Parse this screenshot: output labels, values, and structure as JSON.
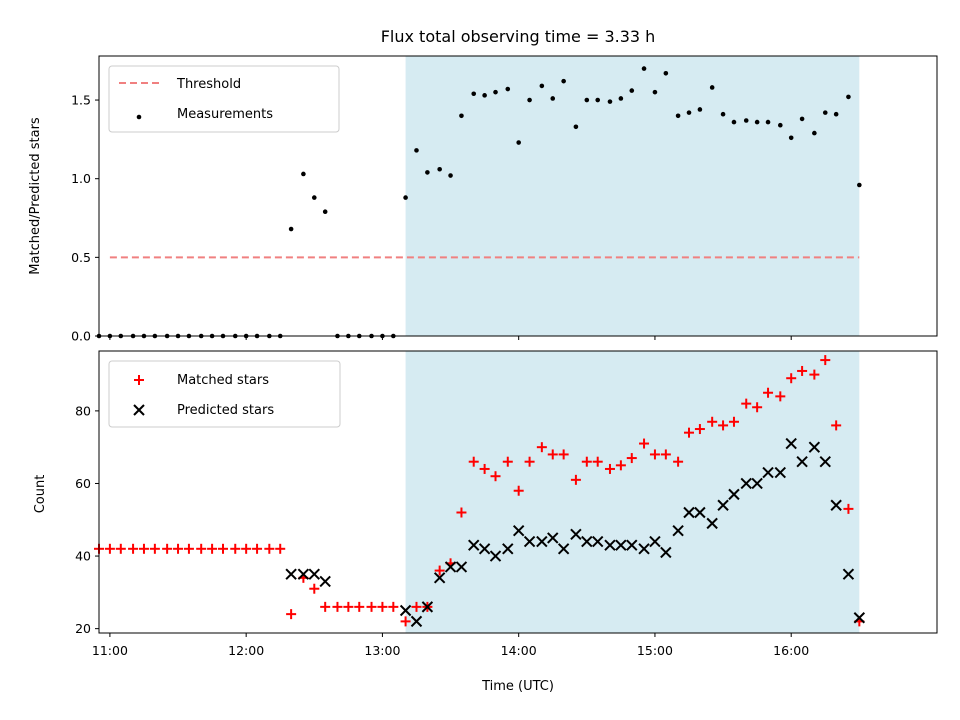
{
  "colors": {
    "background": "#ffffff",
    "span": "#add8e6",
    "threshold": "#f08080",
    "measurement": "#000000",
    "matched": "#ff0000",
    "predicted": "#000000"
  },
  "chart_data": [
    {
      "type": "scatter",
      "title": "Flux total observing time = 3.33 h",
      "xlabel": "",
      "ylabel": "Matched/Predicted stars",
      "xlim": [
        10.92,
        17.07
      ],
      "ylim": [
        0.0,
        1.78
      ],
      "yticks": [
        0.0,
        0.5,
        1.0,
        1.5
      ],
      "ytick_labels": [
        "0.0",
        "0.5",
        "1.0",
        "1.5"
      ],
      "xticks": [
        11,
        12,
        13,
        14,
        15,
        16
      ],
      "span": [
        13.17,
        16.5
      ],
      "threshold": {
        "label": "Threshold",
        "value": 0.5,
        "x_range": [
          11.0,
          16.5
        ]
      },
      "legend": [
        "Threshold",
        "Measurements"
      ],
      "legend_position": "top-left",
      "series": [
        {
          "name": "Measurements",
          "x": [
            10.92,
            11.0,
            11.08,
            11.17,
            11.25,
            11.33,
            11.42,
            11.5,
            11.58,
            11.67,
            11.75,
            11.83,
            11.92,
            12.0,
            12.08,
            12.17,
            12.25,
            12.33,
            12.42,
            12.5,
            12.58,
            12.67,
            12.75,
            12.83,
            12.92,
            13.0,
            13.08,
            13.17,
            13.25,
            13.33,
            13.42,
            13.5,
            13.58,
            13.67,
            13.75,
            13.83,
            13.92,
            14.0,
            14.08,
            14.17,
            14.25,
            14.33,
            14.42,
            14.5,
            14.58,
            14.67,
            14.75,
            14.83,
            14.92,
            15.0,
            15.08,
            15.17,
            15.25,
            15.33,
            15.42,
            15.5,
            15.58,
            15.67,
            15.75,
            15.83,
            15.92,
            16.0,
            16.08,
            16.17,
            16.25,
            16.33,
            16.42,
            16.5
          ],
          "y": [
            0.0,
            0.0,
            0.0,
            0.0,
            0.0,
            0.0,
            0.0,
            0.0,
            0.0,
            0.0,
            0.0,
            0.0,
            0.0,
            0.0,
            0.0,
            0.0,
            0.0,
            0.68,
            1.03,
            0.88,
            0.79,
            0.0,
            0.0,
            0.0,
            0.0,
            0.0,
            0.0,
            0.88,
            1.18,
            1.04,
            1.06,
            1.02,
            1.4,
            1.54,
            1.53,
            1.55,
            1.57,
            1.23,
            1.5,
            1.59,
            1.51,
            1.62,
            1.33,
            1.5,
            1.5,
            1.49,
            1.51,
            1.56,
            1.7,
            1.55,
            1.67,
            1.4,
            1.42,
            1.44,
            1.58,
            1.41,
            1.36,
            1.37,
            1.36,
            1.36,
            1.34,
            1.26,
            1.38,
            1.29,
            1.42,
            1.41,
            1.52,
            0.96
          ]
        }
      ]
    },
    {
      "type": "scatter",
      "title": "",
      "xlabel": "Time (UTC)",
      "ylabel": "Count",
      "xlim": [
        10.92,
        17.07
      ],
      "ylim": [
        18.8,
        96.5
      ],
      "yticks": [
        20,
        40,
        60,
        80
      ],
      "ytick_labels": [
        "20",
        "40",
        "60",
        "80"
      ],
      "xticks": [
        11,
        12,
        13,
        14,
        15,
        16
      ],
      "xtick_labels": [
        "11:00",
        "12:00",
        "13:00",
        "14:00",
        "15:00",
        "16:00"
      ],
      "span": [
        13.17,
        16.5
      ],
      "legend": [
        "Matched stars",
        "Predicted stars"
      ],
      "legend_position": "top-left",
      "series": [
        {
          "name": "Matched stars",
          "marker": "+",
          "x": [
            10.92,
            11.0,
            11.08,
            11.17,
            11.25,
            11.33,
            11.42,
            11.5,
            11.58,
            11.67,
            11.75,
            11.83,
            11.92,
            12.0,
            12.08,
            12.17,
            12.25,
            12.33,
            12.42,
            12.5,
            12.58,
            12.67,
            12.75,
            12.83,
            12.92,
            13.0,
            13.08,
            13.17,
            13.25,
            13.33,
            13.42,
            13.5,
            13.58,
            13.67,
            13.75,
            13.83,
            13.92,
            14.0,
            14.08,
            14.17,
            14.25,
            14.33,
            14.42,
            14.5,
            14.58,
            14.67,
            14.75,
            14.83,
            14.92,
            15.0,
            15.08,
            15.17,
            15.25,
            15.33,
            15.42,
            15.5,
            15.58,
            15.67,
            15.75,
            15.83,
            15.92,
            16.0,
            16.08,
            16.17,
            16.25,
            16.33,
            16.42,
            16.5
          ],
          "y": [
            42,
            42,
            42,
            42,
            42,
            42,
            42,
            42,
            42,
            42,
            42,
            42,
            42,
            42,
            42,
            42,
            42,
            24,
            34,
            31,
            26,
            26,
            26,
            26,
            26,
            26,
            26,
            22,
            26,
            26,
            36,
            38,
            52,
            66,
            64,
            62,
            66,
            58,
            66,
            70,
            68,
            68,
            61,
            66,
            66,
            64,
            65,
            67,
            71,
            68,
            68,
            66,
            74,
            75,
            77,
            76,
            77,
            82,
            81,
            85,
            84,
            89,
            91,
            90,
            94,
            76,
            53,
            22
          ]
        },
        {
          "name": "Predicted stars",
          "marker": "x",
          "x": [
            12.33,
            12.42,
            12.5,
            12.58,
            13.17,
            13.25,
            13.33,
            13.42,
            13.5,
            13.58,
            13.67,
            13.75,
            13.83,
            13.92,
            14.0,
            14.08,
            14.17,
            14.25,
            14.33,
            14.42,
            14.5,
            14.58,
            14.67,
            14.75,
            14.83,
            14.92,
            15.0,
            15.08,
            15.17,
            15.25,
            15.33,
            15.42,
            15.5,
            15.58,
            15.67,
            15.75,
            15.83,
            15.92,
            16.0,
            16.08,
            16.17,
            16.25,
            16.33,
            16.42,
            16.5
          ],
          "y": [
            35,
            35,
            35,
            33,
            25,
            22,
            26,
            34,
            37,
            37,
            43,
            42,
            40,
            42,
            47,
            44,
            44,
            45,
            42,
            46,
            44,
            44,
            43,
            43,
            43,
            42,
            44,
            41,
            47,
            52,
            52,
            49,
            54,
            57,
            60,
            60,
            63,
            63,
            71,
            66,
            70,
            66,
            54,
            35,
            23
          ]
        }
      ]
    }
  ]
}
